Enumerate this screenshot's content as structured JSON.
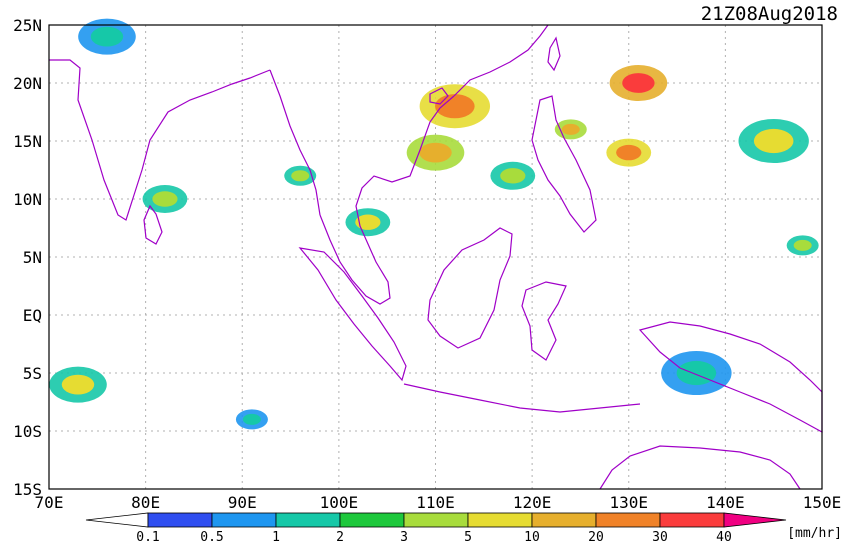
{
  "timestamp": "21Z08Aug2018",
  "units": "[mm/hr]",
  "lat_labels": [
    "25N",
    "20N",
    "15N",
    "10N",
    "5N",
    "EQ",
    "5S",
    "10S",
    "15S"
  ],
  "lon_labels": [
    "70E",
    "80E",
    "90E",
    "100E",
    "110E",
    "120E",
    "130E",
    "140E",
    "150E"
  ],
  "colorbar": {
    "ticks": [
      "0.1",
      "0.5",
      "1",
      "2",
      "3",
      "5",
      "10",
      "20",
      "30",
      "40"
    ],
    "colors": [
      "#ffffff",
      "#2f4ef0",
      "#1e96f0",
      "#16c8a8",
      "#1ec83c",
      "#a8dc3c",
      "#e6dc32",
      "#e6af2d",
      "#f08228",
      "#fa3c3c",
      "#f00082"
    ]
  },
  "map_colors": {
    "coastline": "#a000c8",
    "grid": "#b0b0b0",
    "frame": "#000000"
  },
  "precipitation_cells": [
    {
      "lon": 96,
      "lat": 12,
      "rain_mm_hr": 3
    },
    {
      "lon": 103,
      "lat": 8,
      "rain_mm_hr": 5
    },
    {
      "lon": 110,
      "lat": 14,
      "rain_mm_hr": 10
    },
    {
      "lon": 112,
      "lat": 18,
      "rain_mm_hr": 20
    },
    {
      "lon": 124,
      "lat": 16,
      "rain_mm_hr": 10
    },
    {
      "lon": 130,
      "lat": 14,
      "rain_mm_hr": 20
    },
    {
      "lon": 131,
      "lat": 20,
      "rain_mm_hr": 30
    },
    {
      "lon": 145,
      "lat": 15,
      "rain_mm_hr": 5
    },
    {
      "lon": 148,
      "lat": 6,
      "rain_mm_hr": 3
    },
    {
      "lon": 118,
      "lat": 12,
      "rain_mm_hr": 3
    },
    {
      "lon": 73,
      "lat": -6,
      "rain_mm_hr": 5
    },
    {
      "lon": 137,
      "lat": -5,
      "rain_mm_hr": 1
    },
    {
      "lon": 91,
      "lat": -9,
      "rain_mm_hr": 1
    },
    {
      "lon": 82,
      "lat": 10,
      "rain_mm_hr": 3
    },
    {
      "lon": 76,
      "lat": 24,
      "rain_mm_hr": 1
    }
  ]
}
